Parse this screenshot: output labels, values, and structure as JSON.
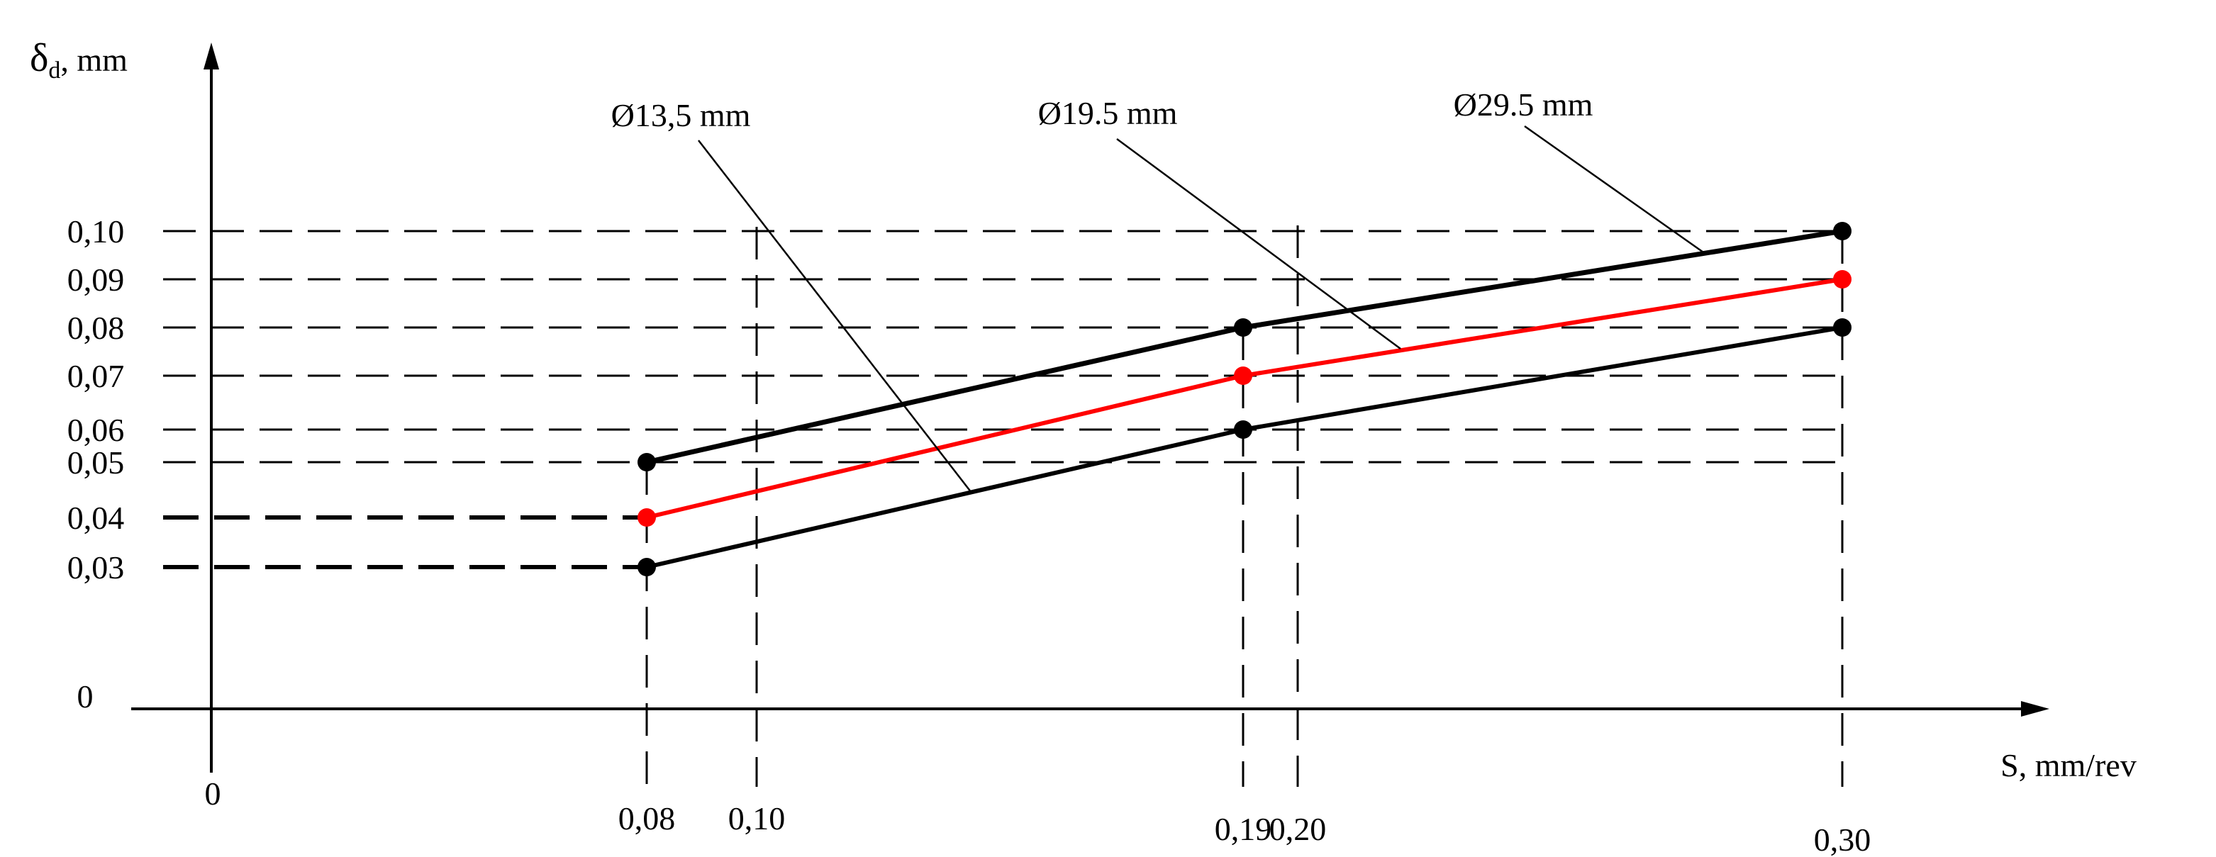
{
  "chart_data": {
    "type": "line",
    "title": "",
    "ylabel_main": "δ",
    "ylabel_sub": "d",
    "ylabel_unit": ", mm",
    "xlabel": "S, mm/rev",
    "origin_x_label": "0",
    "origin_y_label": "0",
    "x_ticks": [
      {
        "value": 0.08,
        "label": "0,08"
      },
      {
        "value": 0.1,
        "label": "0,10"
      },
      {
        "value": 0.19,
        "label": "0,19"
      },
      {
        "value": 0.2,
        "label": "0,20"
      },
      {
        "value": 0.3,
        "label": "0,30"
      }
    ],
    "y_ticks": [
      {
        "value": 0.03,
        "label": "0,03"
      },
      {
        "value": 0.04,
        "label": "0,04"
      },
      {
        "value": 0.05,
        "label": "0,05"
      },
      {
        "value": 0.06,
        "label": "0,06"
      },
      {
        "value": 0.07,
        "label": "0,07"
      },
      {
        "value": 0.08,
        "label": "0,08"
      },
      {
        "value": 0.09,
        "label": "0,09"
      },
      {
        "value": 0.1,
        "label": "0,10"
      }
    ],
    "series": [
      {
        "name": "Ø13,5 mm",
        "color": "#000000",
        "x": [
          0.08,
          0.19,
          0.3
        ],
        "y": [
          0.03,
          0.06,
          0.08
        ]
      },
      {
        "name": "Ø19.5 mm",
        "color": "#ff0000",
        "x": [
          0.08,
          0.19,
          0.3
        ],
        "y": [
          0.04,
          0.07,
          0.09
        ]
      },
      {
        "name": "Ø29.5 mm",
        "color": "#000000",
        "x": [
          0.08,
          0.19,
          0.3
        ],
        "y": [
          0.05,
          0.08,
          0.1
        ]
      }
    ],
    "grid": "dashed reference lines at tick values"
  }
}
